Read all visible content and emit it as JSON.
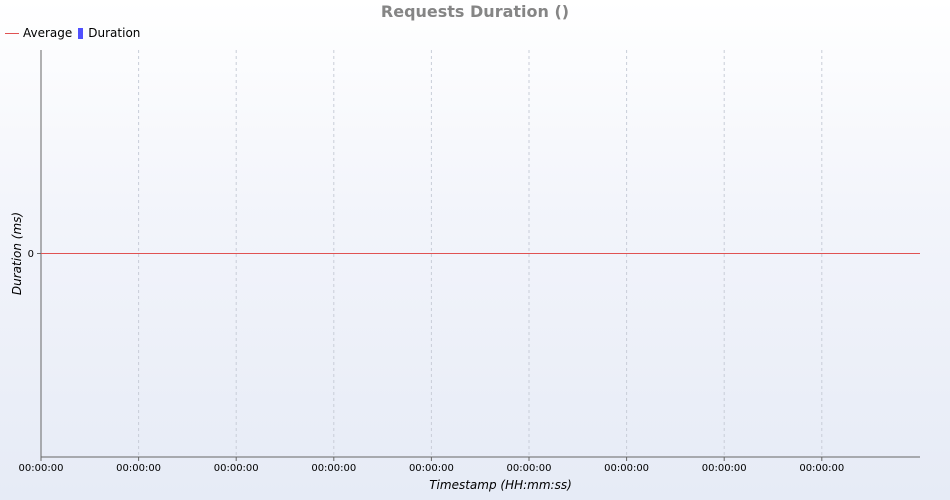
{
  "chart_data": {
    "type": "line",
    "title": "Requests Duration ()",
    "xlabel": "Timestamp (HH:mm:ss)",
    "ylabel": "Duration (ms)",
    "x_tick_labels": [
      "00:00:00",
      "00:00:00",
      "00:00:00",
      "00:00:00",
      "00:00:00",
      "00:00:00",
      "00:00:00",
      "00:00:00",
      "00:00:00"
    ],
    "y_tick_labels": [
      "0"
    ],
    "ylim": [
      -1,
      1
    ],
    "grid": true,
    "legend": {
      "position": "top-left",
      "entries": [
        {
          "name": "Average",
          "kind": "line",
          "color": "#e05252"
        },
        {
          "name": "Duration",
          "kind": "bar",
          "color": "#5050ff"
        }
      ]
    },
    "series": [
      {
        "name": "Average",
        "type": "line",
        "color": "#e05252",
        "values": [
          0,
          0
        ]
      },
      {
        "name": "Duration",
        "type": "bar",
        "color": "#5050ff",
        "values": []
      }
    ]
  }
}
